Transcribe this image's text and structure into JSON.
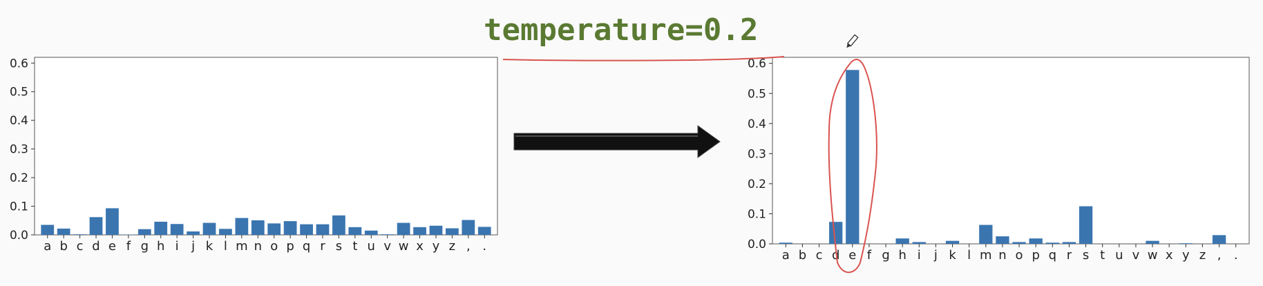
{
  "title": "temperature=0.2",
  "colors": {
    "bar": "#3a75b0",
    "title": "#5a7a32",
    "annotation": "#d9534f",
    "arrow": "#111111"
  },
  "icons": {
    "cursor": "pencil-icon"
  },
  "chart_data": [
    {
      "type": "bar",
      "categories": [
        "a",
        "b",
        "c",
        "d",
        "e",
        "f",
        "g",
        "h",
        "i",
        "j",
        "k",
        "l",
        "m",
        "n",
        "o",
        "p",
        "q",
        "r",
        "s",
        "t",
        "u",
        "v",
        "w",
        "x",
        "y",
        "z",
        ",",
        "."
      ],
      "values": [
        0.035,
        0.022,
        0.002,
        0.062,
        0.093,
        0.001,
        0.02,
        0.046,
        0.038,
        0.012,
        0.042,
        0.021,
        0.059,
        0.051,
        0.04,
        0.048,
        0.037,
        0.037,
        0.068,
        0.027,
        0.015,
        0.002,
        0.042,
        0.027,
        0.032,
        0.023,
        0.052,
        0.028
      ],
      "ylim": [
        0,
        0.62
      ],
      "yticks": [
        "0.0",
        "0.1",
        "0.2",
        "0.3",
        "0.4",
        "0.5",
        "0.6"
      ],
      "grid": false
    },
    {
      "type": "bar",
      "categories": [
        "a",
        "b",
        "c",
        "d",
        "e",
        "f",
        "g",
        "h",
        "i",
        "j",
        "k",
        "l",
        "m",
        "n",
        "o",
        "p",
        "q",
        "r",
        "s",
        "t",
        "u",
        "v",
        "w",
        "x",
        "y",
        "z",
        ",",
        "."
      ],
      "values": [
        0.004,
        0.0,
        0.0,
        0.073,
        0.578,
        0.0,
        0.0,
        0.018,
        0.006,
        0.0,
        0.01,
        0.0,
        0.063,
        0.025,
        0.006,
        0.018,
        0.004,
        0.006,
        0.125,
        0.0,
        0.0,
        0.0,
        0.01,
        0.0,
        0.002,
        0.0,
        0.029,
        0.0
      ],
      "ylim": [
        0,
        0.62
      ],
      "yticks": [
        "0.0",
        "0.1",
        "0.2",
        "0.3",
        "0.4",
        "0.5",
        "0.6"
      ],
      "grid": false
    }
  ]
}
